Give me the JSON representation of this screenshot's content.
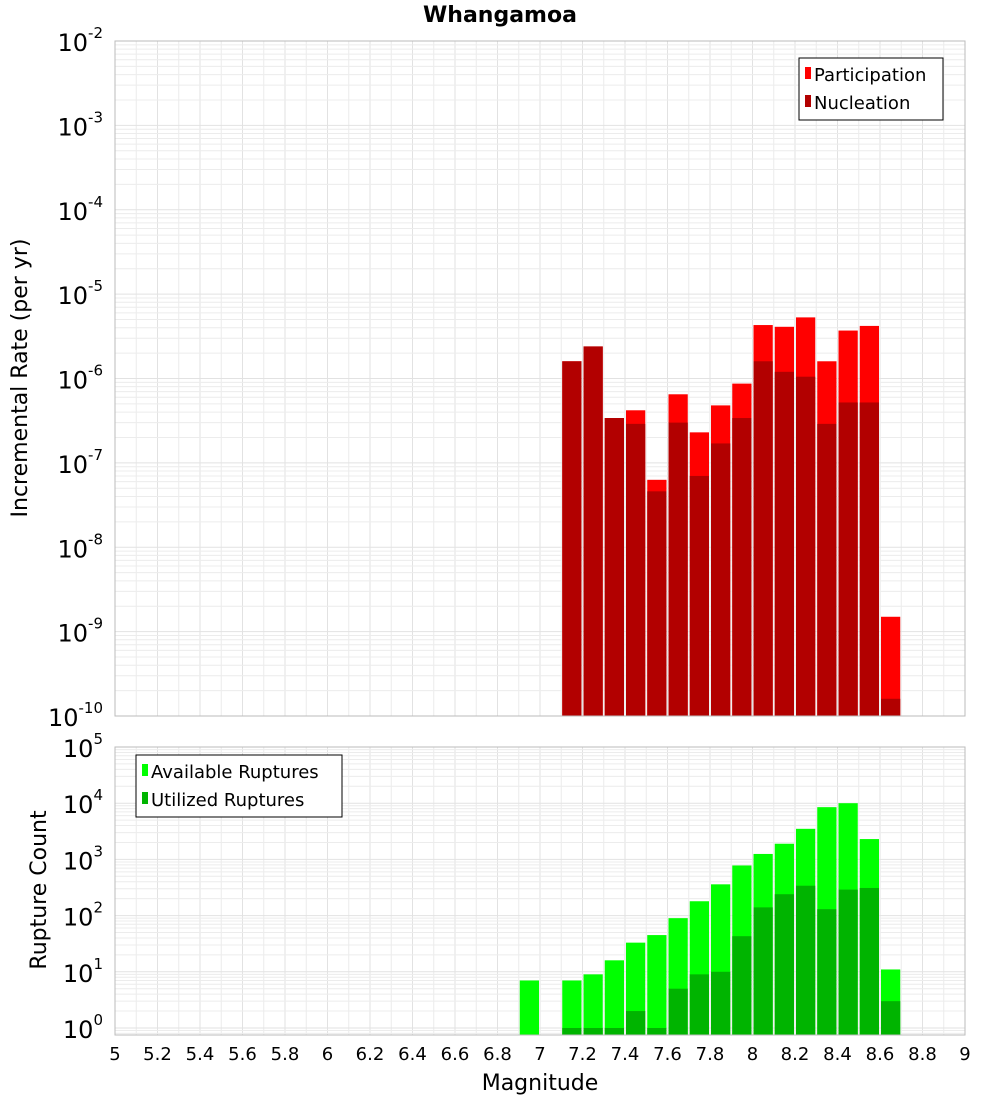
{
  "chart_data": [
    {
      "type": "bar",
      "title": "Whangamoa",
      "ylabel": "Incremental Rate (per yr)",
      "xlabel": "",
      "yscale": "log",
      "ylim": [
        1e-10,
        0.01
      ],
      "y_tick_exponents": [
        "-10",
        "-9",
        "-8",
        "-7",
        "-6",
        "-5",
        "-4",
        "-3",
        "-2"
      ],
      "xlim": [
        5,
        9
      ],
      "grid": true,
      "legend_position": "top-right",
      "x": [
        7.15,
        7.25,
        7.35,
        7.45,
        7.55,
        7.65,
        7.75,
        7.85,
        7.95,
        8.05,
        8.15,
        8.25,
        8.35,
        8.45,
        8.55,
        8.65
      ],
      "series": [
        {
          "name": "Participation",
          "color": "#ff0000",
          "values": [
            1.6e-06,
            2.4e-06,
            3.4e-07,
            4.2e-07,
            6.3e-08,
            6.5e-07,
            2.3e-07,
            4.8e-07,
            8.7e-07,
            4.3e-06,
            4.1e-06,
            5.3e-06,
            1.6e-06,
            3.7e-06,
            4.2e-06,
            1.5e-09
          ]
        },
        {
          "name": "Nucleation",
          "color": "#b20000",
          "values": [
            1.6e-06,
            2.4e-06,
            3.4e-07,
            2.9e-07,
            4.6e-08,
            3e-07,
            7e-08,
            1.7e-07,
            3.4e-07,
            1.6e-06,
            1.2e-06,
            1.05e-06,
            2.9e-07,
            5.2e-07,
            5.2e-07,
            1.6e-10
          ]
        }
      ]
    },
    {
      "type": "bar",
      "title": "",
      "ylabel": "Rupture Count",
      "xlabel": "Magnitude",
      "yscale": "log",
      "ylim": [
        0.75,
        100000
      ],
      "y_tick_exponents": [
        "0",
        "1",
        "2",
        "3",
        "4",
        "5"
      ],
      "xlim": [
        5,
        9
      ],
      "x_tick_labels": [
        "5",
        "5.2",
        "5.4",
        "5.6",
        "5.8",
        "6",
        "6.2",
        "6.4",
        "6.6",
        "6.8",
        "7",
        "7.2",
        "7.4",
        "7.6",
        "7.8",
        "8",
        "8.2",
        "8.4",
        "8.6",
        "8.8",
        "9"
      ],
      "grid": true,
      "legend_position": "top-left",
      "x": [
        6.95,
        7.15,
        7.25,
        7.35,
        7.45,
        7.55,
        7.65,
        7.75,
        7.85,
        7.95,
        8.05,
        8.15,
        8.25,
        8.35,
        8.45,
        8.55,
        8.65
      ],
      "series": [
        {
          "name": "Available Ruptures",
          "color": "#00ff00",
          "values": [
            7,
            7,
            9,
            16,
            33,
            45,
            90,
            180,
            360,
            780,
            1250,
            1900,
            3500,
            8500,
            10000,
            2300,
            11
          ]
        },
        {
          "name": "Utilized Ruptures",
          "color": "#00b400",
          "values": [
            0,
            1,
            1,
            1,
            2,
            1,
            5,
            9,
            10,
            43,
            140,
            240,
            340,
            130,
            290,
            310,
            3
          ]
        }
      ]
    }
  ]
}
